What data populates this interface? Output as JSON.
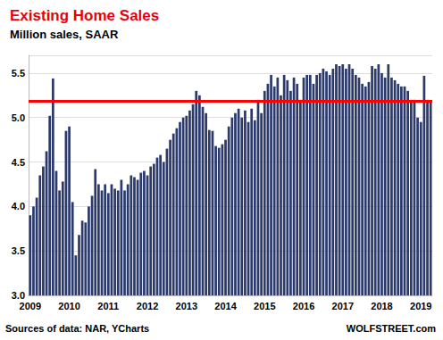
{
  "chart_data": {
    "type": "bar",
    "title": "Existing Home Sales",
    "subtitle": "Million sales, SAAR",
    "source": "Sources of data: NAR, YCharts",
    "credit": "WOLFSTREET.com",
    "color": "#2b3a6b",
    "reference_line": 5.19,
    "reference_color": "#ff0000",
    "grid": true,
    "ylim": [
      3.0,
      5.7
    ],
    "yticks": [
      {
        "value": 3,
        "label": "3.0"
      },
      3.5,
      {
        "value": 4,
        "label": "4.0"
      },
      4.5,
      {
        "value": 5,
        "label": "5.0"
      },
      5.5
    ],
    "categories": [
      "2009",
      null,
      null,
      null,
      null,
      null,
      null,
      null,
      null,
      null,
      null,
      null,
      "2010",
      null,
      null,
      null,
      null,
      null,
      null,
      null,
      null,
      null,
      null,
      null,
      "2011",
      null,
      null,
      null,
      null,
      null,
      null,
      null,
      null,
      null,
      null,
      null,
      "2012",
      null,
      null,
      null,
      null,
      null,
      null,
      null,
      null,
      null,
      null,
      null,
      "2013",
      null,
      null,
      null,
      null,
      null,
      null,
      null,
      null,
      null,
      null,
      null,
      "2014",
      null,
      null,
      null,
      null,
      null,
      null,
      null,
      null,
      null,
      null,
      null,
      "2015",
      null,
      null,
      null,
      null,
      null,
      null,
      null,
      null,
      null,
      null,
      null,
      "2016",
      null,
      null,
      null,
      null,
      null,
      null,
      null,
      null,
      null,
      null,
      null,
      "2017",
      null,
      null,
      null,
      null,
      null,
      null,
      null,
      null,
      null,
      null,
      null,
      "2018",
      null,
      null,
      null,
      null,
      null,
      null,
      null,
      null,
      null,
      null,
      null,
      "2019",
      null,
      null,
      null
    ],
    "values": [
      3.9,
      4.0,
      4.1,
      4.35,
      4.45,
      4.62,
      5.02,
      5.44,
      4.4,
      4.18,
      4.28,
      4.85,
      4.9,
      4.05,
      3.45,
      3.68,
      3.84,
      3.82,
      4.0,
      4.12,
      4.42,
      4.25,
      4.18,
      4.25,
      4.15,
      4.25,
      4.2,
      4.18,
      4.3,
      4.18,
      4.25,
      4.35,
      4.33,
      4.3,
      4.38,
      4.4,
      4.35,
      4.45,
      4.48,
      4.55,
      4.58,
      4.5,
      4.65,
      4.75,
      4.82,
      4.88,
      4.95,
      5.0,
      5.02,
      5.08,
      5.15,
      5.3,
      5.25,
      5.12,
      5.05,
      4.86,
      4.85,
      4.68,
      4.66,
      4.7,
      4.75,
      4.9,
      5.0,
      5.05,
      5.1,
      5.0,
      5.08,
      4.95,
      5.1,
      4.97,
      5.2,
      5.05,
      5.3,
      5.38,
      5.48,
      5.35,
      5.45,
      5.25,
      5.48,
      5.42,
      5.3,
      5.45,
      5.38,
      5.2,
      5.45,
      5.48,
      5.48,
      5.38,
      5.48,
      5.5,
      5.55,
      5.52,
      5.48,
      5.55,
      5.6,
      5.58,
      5.6,
      5.55,
      5.6,
      5.55,
      5.48,
      5.45,
      5.38,
      5.35,
      5.4,
      5.58,
      5.55,
      5.6,
      5.5,
      5.45,
      5.6,
      5.45,
      5.42,
      5.38,
      5.35,
      5.35,
      5.3,
      5.2,
      5.2,
      5.0,
      4.95,
      5.47,
      5.2,
      5.19
    ]
  }
}
